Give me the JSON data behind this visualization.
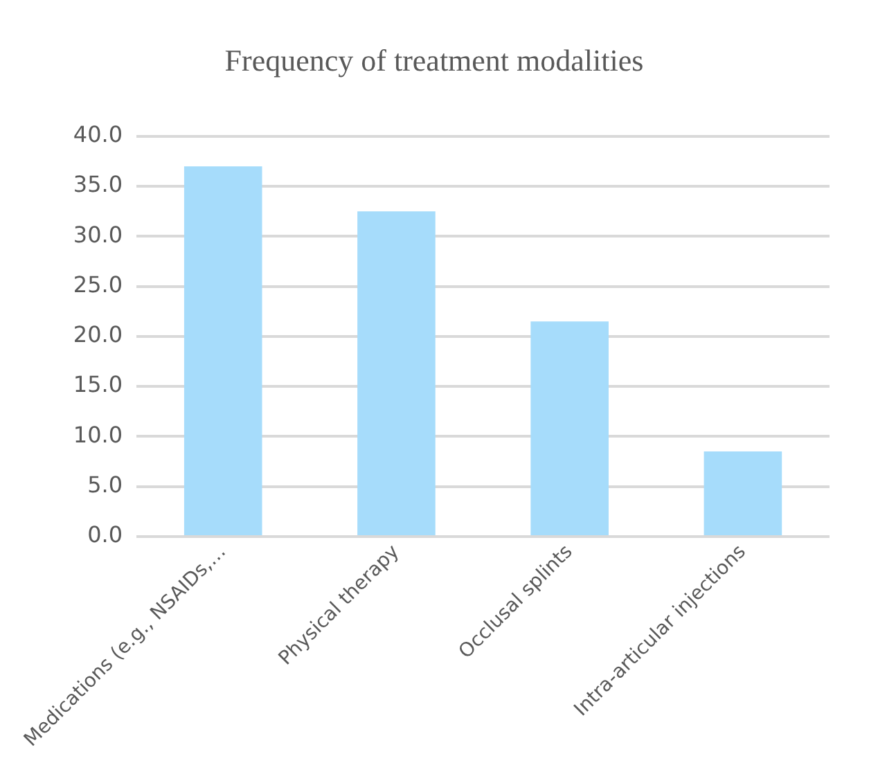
{
  "chart_data": {
    "type": "bar",
    "title": "Frequency of treatment modalities",
    "categories": [
      "Medications (e.g., NSAIDs,…",
      "Physical therapy",
      "Occlusal splints",
      "Intra-articular injections"
    ],
    "values": [
      37.0,
      32.5,
      21.5,
      8.5
    ],
    "color": "#a6dcfb",
    "ylim": [
      0,
      40
    ],
    "yticks": [
      {
        "value": 0,
        "label": "0.0"
      },
      {
        "value": 5,
        "label": "5.0"
      },
      {
        "value": 10,
        "label": "10.0"
      },
      {
        "value": 15,
        "label": "15.0"
      },
      {
        "value": 20,
        "label": "20.0"
      },
      {
        "value": 25,
        "label": "25.0"
      },
      {
        "value": 30,
        "label": "30.0"
      },
      {
        "value": 35,
        "label": "35.0"
      },
      {
        "value": 40,
        "label": "40.0"
      }
    ],
    "grid": "y",
    "legend": false
  }
}
